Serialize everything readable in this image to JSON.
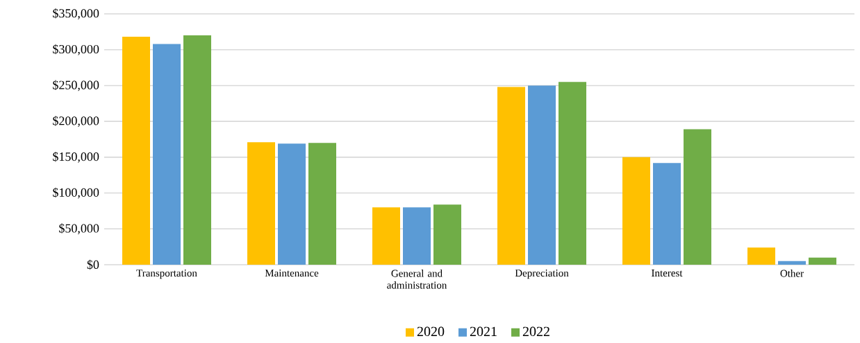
{
  "chart_data": {
    "type": "bar",
    "categories": [
      "Transportation",
      "Maintenance",
      "General and administration",
      "Depreciation",
      "Interest",
      "Other"
    ],
    "series": [
      {
        "name": "2020",
        "color": "#ffc000",
        "values": [
          318000,
          171000,
          80000,
          248000,
          150000,
          24000
        ]
      },
      {
        "name": "2021",
        "color": "#5b9bd5",
        "values": [
          308000,
          169000,
          80000,
          250000,
          142000,
          5000
        ]
      },
      {
        "name": "2022",
        "color": "#70ad47",
        "values": [
          320000,
          170000,
          84000,
          255000,
          189000,
          10000
        ]
      }
    ],
    "ylim": [
      0,
      350000
    ],
    "yticks": [
      {
        "value": 0,
        "label": "$0"
      },
      {
        "value": 50000,
        "label": "$50,000"
      },
      {
        "value": 100000,
        "label": "$100,000"
      },
      {
        "value": 150000,
        "label": "$150,000"
      },
      {
        "value": 200000,
        "label": "$200,000"
      },
      {
        "value": 250000,
        "label": "$250,000"
      },
      {
        "value": 300000,
        "label": "$300,000"
      },
      {
        "value": 350000,
        "label": "$350,000"
      }
    ],
    "grid": "y",
    "legend": "bottom"
  }
}
